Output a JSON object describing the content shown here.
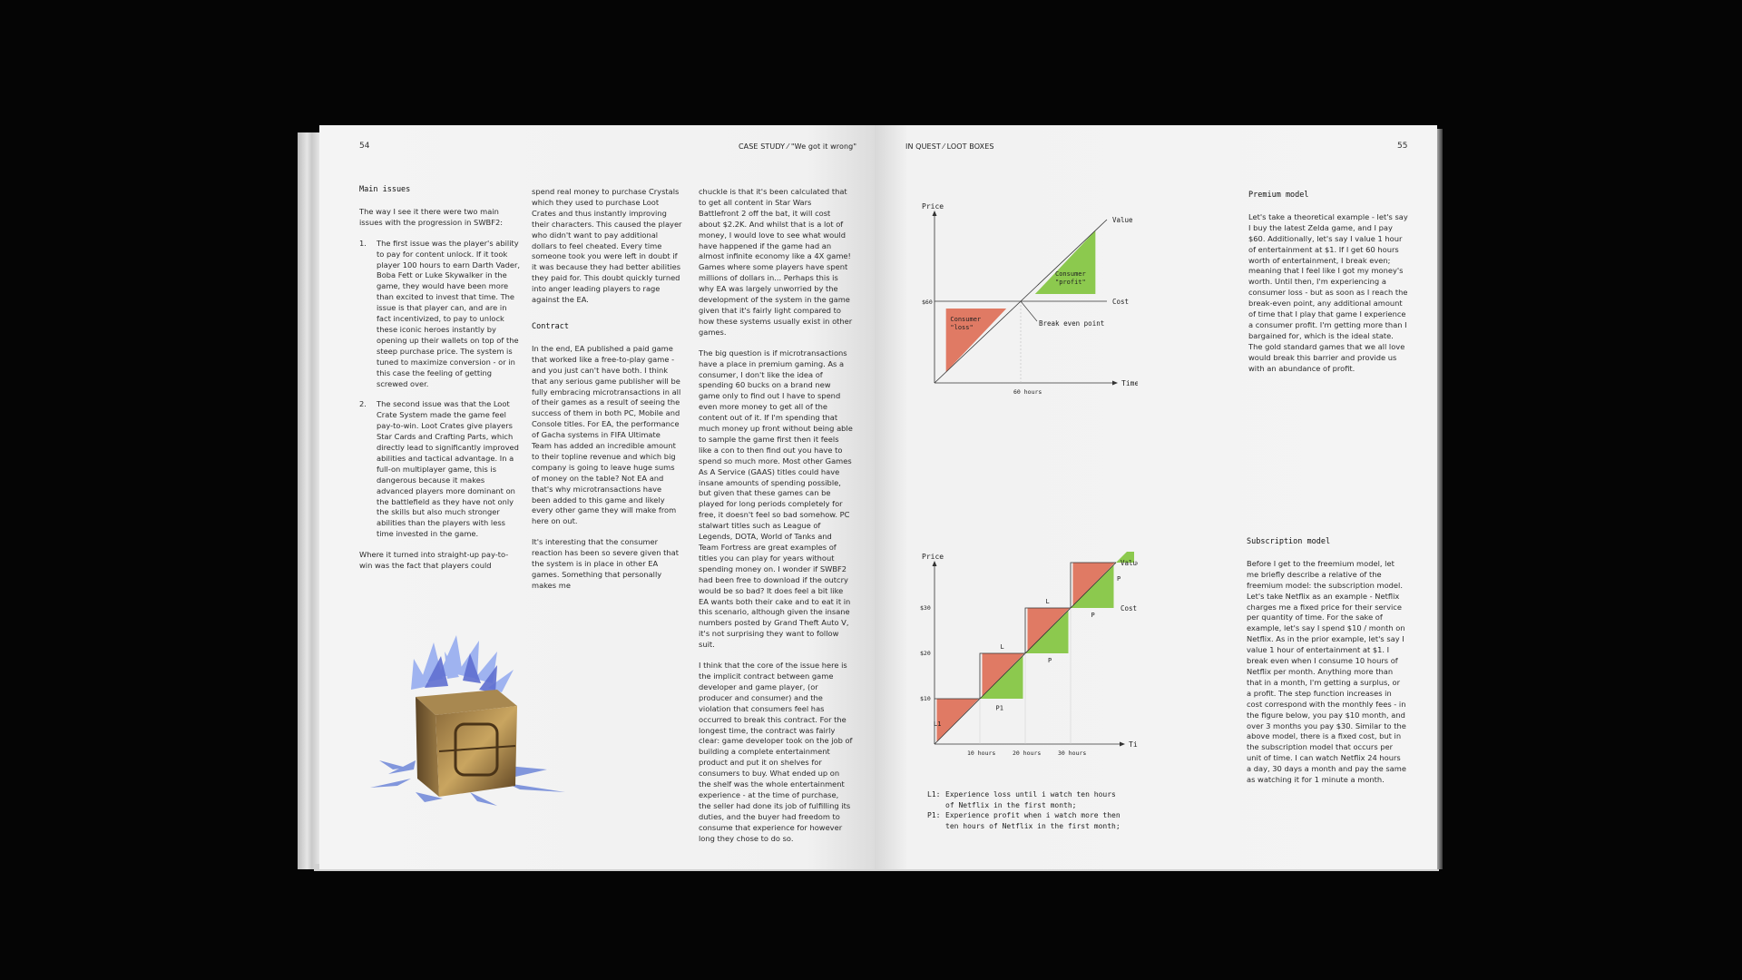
{
  "left_page": {
    "page_number": "54",
    "running_head": "CASE STUDY ⁄ \"We got it wrong\"",
    "col1": {
      "heading": "Main issues",
      "intro": "The way I see it there were two main issues with the progression in SWBF2:",
      "items": [
        {
          "num": "1.",
          "text": "The first issue was the player's ability to pay for content unlock. If it took player 100 hours to earn Darth Vader, Boba Fett or Luke Skywalker in the game, they would have been more than excited to invest that time. The issue is that player can, and are in fact incentivized, to pay to unlock these iconic heroes instantly by opening up their wallets on top of the steep purchase price. The system is tuned to maximize conversion - or in this case the feeling of getting screwed over."
        },
        {
          "num": "2.",
          "text": "The second issue was that the Loot Crate System made the game feel pay-to-win. Loot Crates give players Star Cards and Crafting Parts, which directly lead to significantly improved abilities and tactical advantage. In a full-on multiplayer game, this is dangerous because it makes advanced players more dominant on the battlefield as they have not only the skills but also much stronger abilities than the players with less time invested in the game."
        }
      ],
      "outro": "Where it turned into straight-up pay-to-win was the fact that players could"
    },
    "col2": {
      "p1": "spend real money to purchase Crystals which they used to purchase Loot Crates and thus instantly improving their characters. This caused the player who didn't want to pay additional dollars to feel cheated. Every time someone took you were left in doubt if it was because they had better abilities they paid for. This doubt quickly turned into anger leading players to rage against the EA.",
      "heading": "Contract",
      "p2": "In the end, EA published a paid game that worked like a free-to-play game - and you just can't have both. I think that any serious game publisher will be fully embracing microtransactions in all of their games as a result of seeing the success of them in both PC, Mobile and Console titles. For EA, the performance of Gacha systems in FIFA Ultimate Team has added an incredible amount to their topline revenue and which big company is going to leave huge sums of money on the table? Not EA and that's why microtransactions have been added to this game and likely every other game they will make from here on out.",
      "p3": "It's interesting that the consumer reaction has been so severe given that the system is in place in other EA games. Something that personally makes me"
    },
    "col3": {
      "p1": "chuckle is that it's been calculated that to get all content in Star Wars Battlefront 2 off the bat, it will cost about $2.2K. And whilst that is a lot of money, I would love to see what would have happened if the game had an almost infinite economy like a 4X game! Games where some players have spent millions of dollars in... Perhaps this is why EA was largely unworried by the development of the system in the game given that it's fairly light compared to how these systems usually exist in other games.",
      "p2": "The big question is if microtransactions have a place in premium gaming. As a consumer, I don't like the idea of spending 60 bucks on a brand new game only to find out I have to spend even more money to get all of the content out of it. If I'm spending that much money up front without being able to sample the game first then it feels like a con to then find out you have to spend so much more. Most other Games As A Service (GAAS) titles could have insane amounts of spending possible, but given that these games can be played for long periods completely for free, it doesn't feel so bad somehow. PC stalwart titles such as League of Legends, DOTA, World of Tanks and Team Fortress are great examples of titles you can play for years without spending money on. I wonder if SWBF2 had been free to download if the outcry would be so bad? It does feel a bit like EA wants both their cake and to eat it in this scenario, although given the insane numbers posted by Grand Theft Auto V, it's not surprising they want to follow suit.",
      "p3": "I think that the core of the issue here is the implicit contract between game developer and game player, (or producer and consumer) and the violation that consumers feel has occurred to break this contract. For the longest time, the contract was fairly clear: game developer took on the job of building a complete entertainment product and put it on shelves for consumers to buy. What ended up on the shelf was the whole entertainment experience - at the time of purchase, the seller had done its job of fulfilling its duties, and the buyer had freedom to consume that experience for however long they chose to do so."
    }
  },
  "right_page": {
    "page_number": "55",
    "running_head": "IN QUEST ⁄ LOOT BOXES",
    "premium": {
      "heading": "Premium model",
      "text": "Let's take a theoretical example - let's say I buy the latest Zelda game, and I pay $60. Additionally, let's say I value 1 hour of entertainment at $1. If I get 60 hours worth of entertainment, I break even; meaning that I feel like I got my money's worth. Until then, I'm experiencing a consumer loss - but as soon as I reach the break-even point, any additional amount of time that I play that game I experience a consumer profit. I'm getting more than I bargained for, which is the ideal state. The gold standard games that we all love would break this barrier and provide us with an abundance of profit."
    },
    "subscription": {
      "heading": "Subscription model",
      "text": "Before I get to the freemium model, let me briefly describe a relative of the freemium model: the subscription model. Let's take Netflix as an example - Netflix charges me a fixed price for their service per quantity of time. For the sake of example, let's say I spend $10 / month on Netflix. As in the prior example, let's say I value 1 hour of entertainment at $1. I break even when I consume 10 hours of Netflix per month. Anything more than that in a month, I'm getting a surplus, or a profit. The step function increases in cost correspond with the monthly fees - in the figure below, you pay $10 month, and over 3 months you pay $30. Similar to the above model, there is a fixed cost, but in the subscription model that occurs per unit of time. I can watch Netflix 24 hours a day, 30 days a month and pay the same as watching it for 1 minute a month."
    },
    "legend": [
      {
        "key": "L1:",
        "text": "Experience loss until i watch ten hours of Netflix in the first month;"
      },
      {
        "key": "P1:",
        "text": "Experience profit when i watch more then ten hours of Netflix in the first month;"
      }
    ]
  },
  "colors": {
    "loss": "#e07a64",
    "profit": "#8cc94e",
    "page": "#f3f3f3",
    "background": "#050505"
  },
  "chart_data": [
    {
      "type": "line",
      "title": "",
      "xlabel": "Time",
      "ylabel": "Price",
      "x_ticks": [
        "60 hours"
      ],
      "y_ticks": [
        "$60"
      ],
      "series": [
        {
          "name": "Value",
          "x": [
            0,
            120
          ],
          "y": [
            0,
            120
          ]
        },
        {
          "name": "Cost",
          "x": [
            0,
            120
          ],
          "y": [
            60,
            60
          ]
        }
      ],
      "annotations": [
        "Consumer \"loss\"",
        "Consumer \"profit\"",
        "Break even point"
      ],
      "xlim": [
        0,
        120
      ],
      "ylim": [
        0,
        120
      ]
    },
    {
      "type": "line",
      "title": "",
      "xlabel": "Time",
      "ylabel": "Price",
      "x_ticks": [
        "10 hours",
        "20 hours",
        "30 hours"
      ],
      "y_ticks": [
        "$10",
        "$20",
        "$30"
      ],
      "series": [
        {
          "name": "Value",
          "x": [
            0,
            40
          ],
          "y": [
            0,
            40
          ]
        },
        {
          "name": "Cost",
          "x": [
            0,
            10,
            10,
            20,
            20,
            30,
            30,
            40
          ],
          "y": [
            10,
            10,
            20,
            20,
            30,
            30,
            40,
            40
          ]
        }
      ],
      "annotations": [
        "L1",
        "P1",
        "L",
        "P",
        "L",
        "P",
        "P"
      ],
      "xlim": [
        0,
        40
      ],
      "ylim": [
        0,
        40
      ]
    }
  ]
}
